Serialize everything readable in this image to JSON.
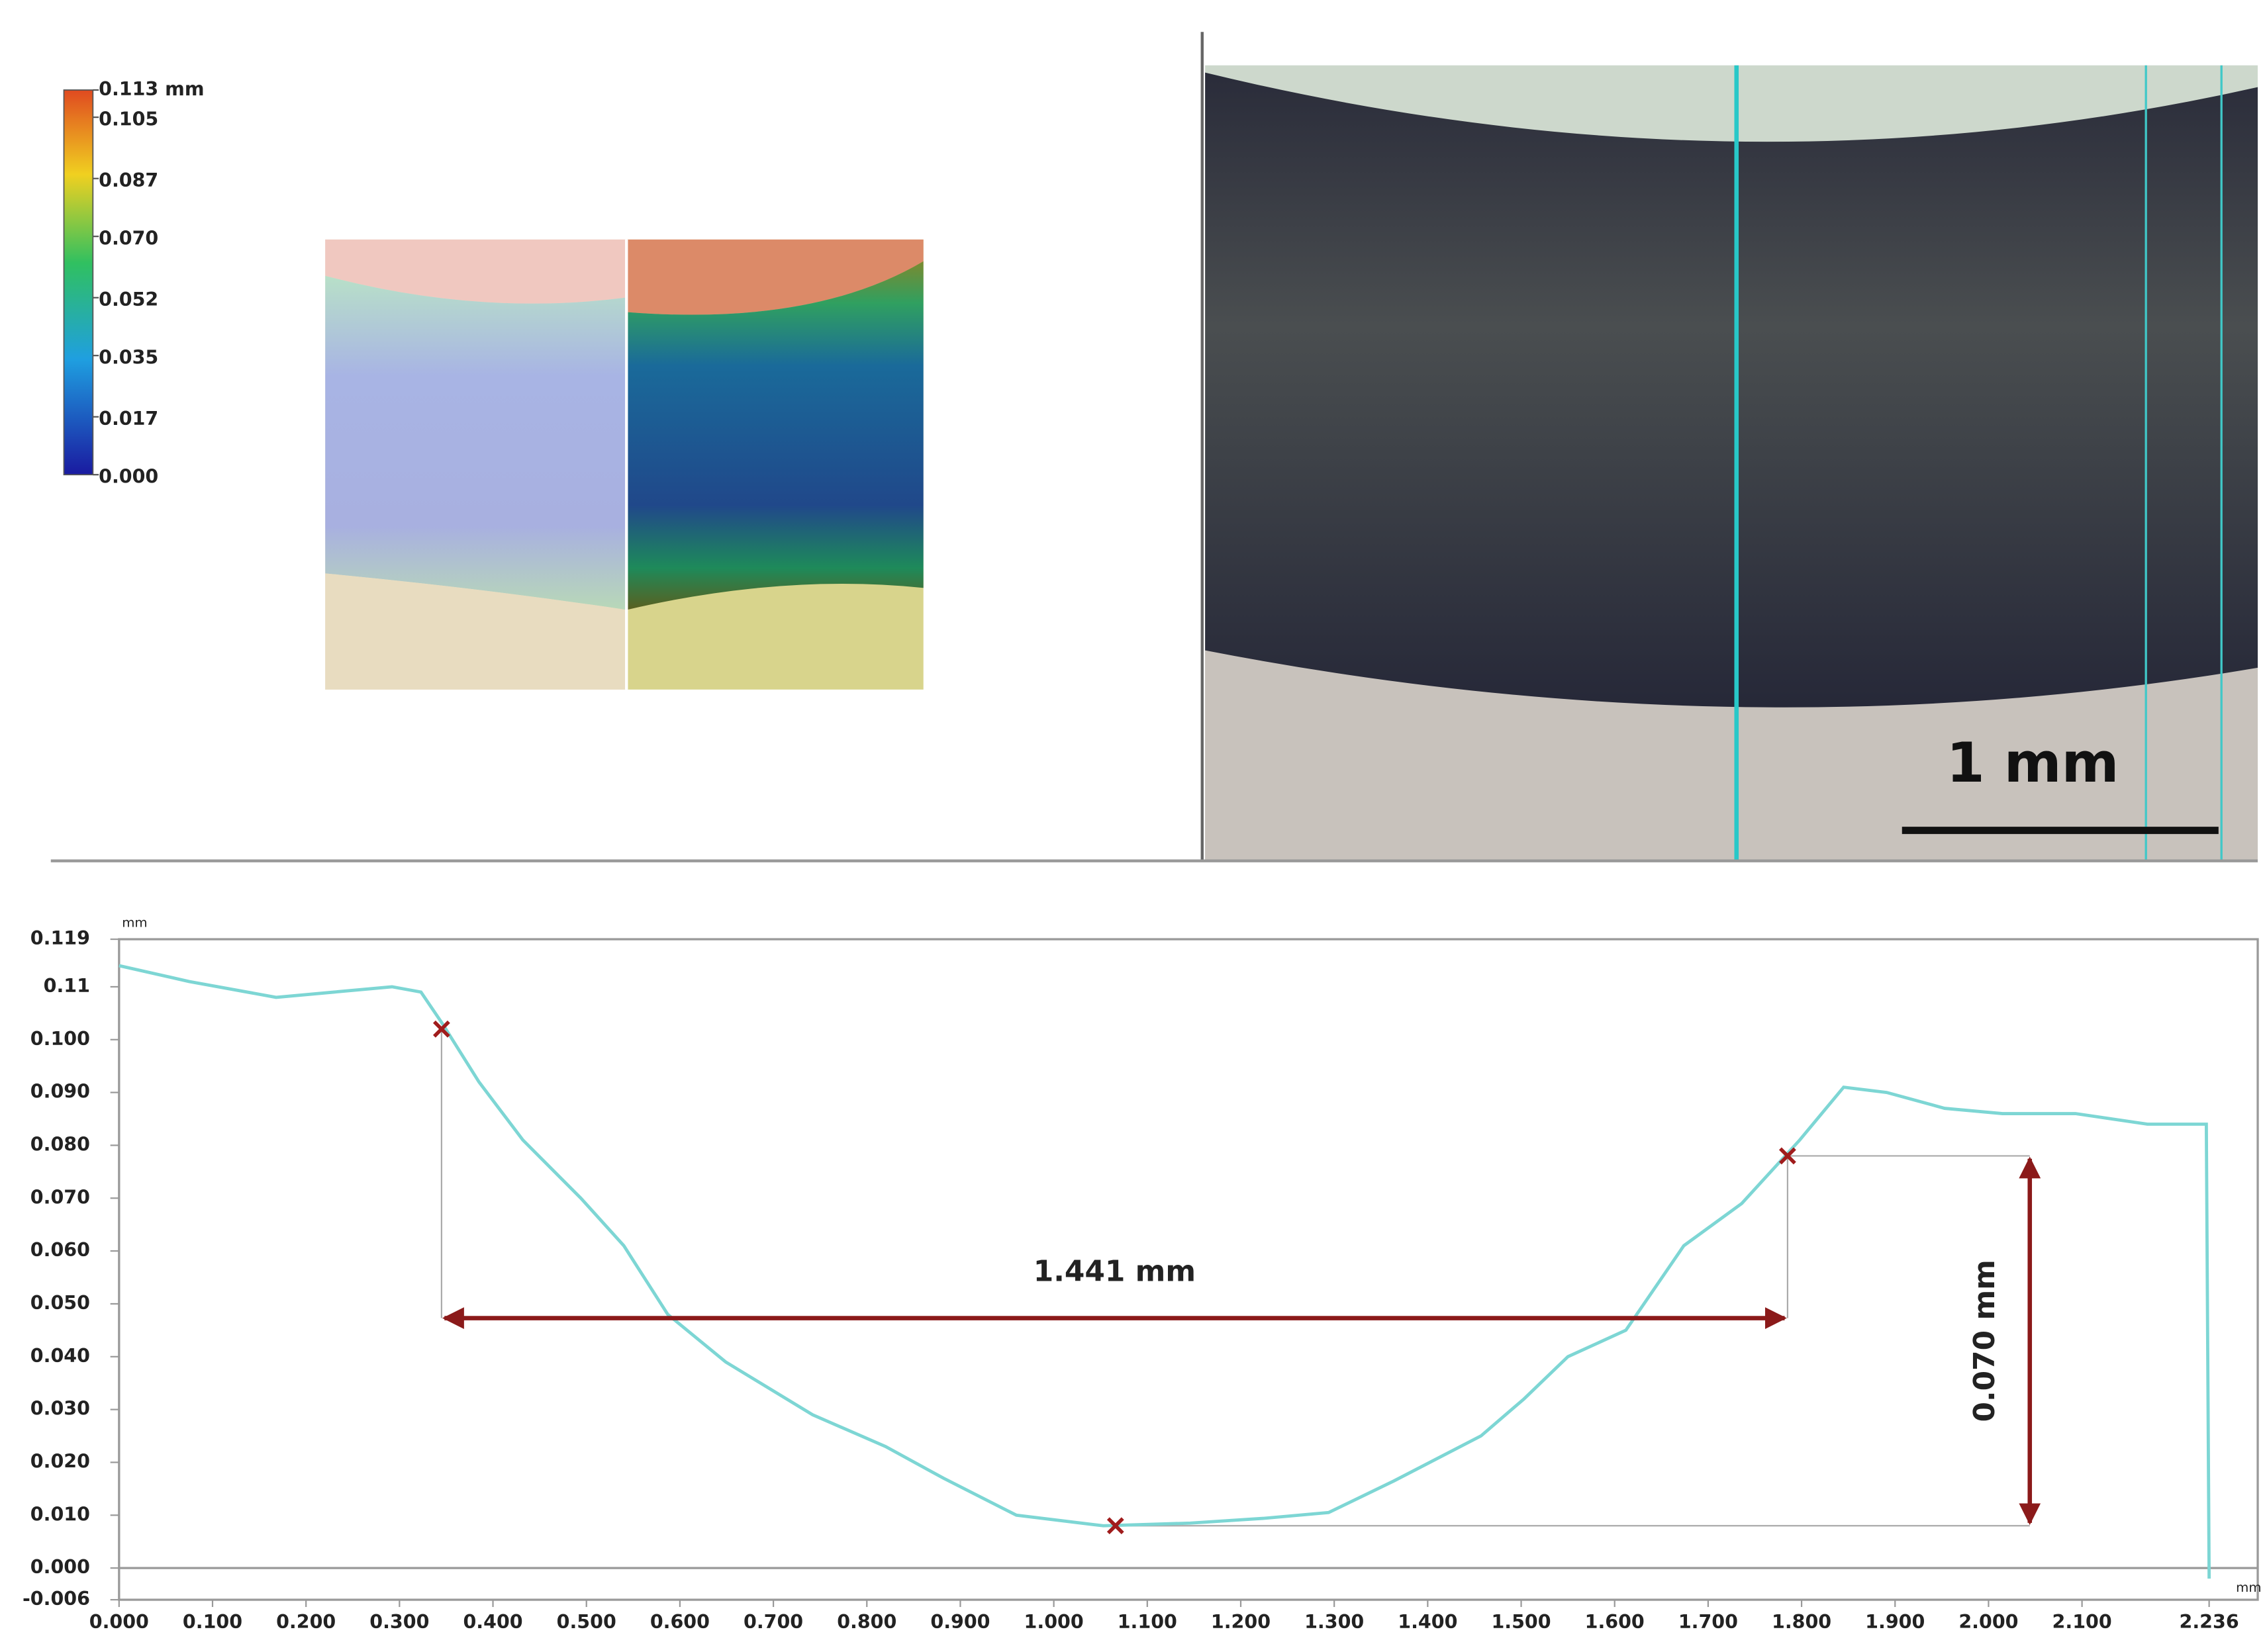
{
  "colorbar": {
    "lim": [
      0,
      0.113
    ],
    "ticks": [
      {
        "value": 0.113,
        "label": "0.113 mm"
      },
      0.105,
      0.087,
      {
        "value": 0.07,
        "label": "0.070"
      },
      0.052,
      0.035,
      0.017,
      {
        "value": 0,
        "label": "0.000"
      }
    ]
  },
  "micrograph": {
    "scale_bar_label": "1 mm"
  },
  "chart_data": {
    "type": "line",
    "x_unit": "mm",
    "y_unit": "mm",
    "color": "#7dd6d4",
    "x": [
      0,
      0.075,
      0.168,
      0.23,
      0.292,
      0.323,
      0.346,
      0.385,
      0.432,
      0.494,
      0.54,
      0.587,
      0.649,
      0.742,
      0.82,
      0.882,
      0.96,
      1.053,
      1.146,
      1.224,
      1.294,
      1.364,
      1.457,
      1.503,
      1.55,
      1.612,
      1.674,
      1.736,
      1.798,
      1.845,
      1.891,
      1.953,
      2.015,
      2.093,
      2.17,
      2.233,
      2.236
    ],
    "values": [
      0.114,
      0.111,
      0.108,
      0.109,
      0.11,
      0.109,
      0.103,
      0.092,
      0.081,
      0.07,
      0.061,
      0.048,
      0.039,
      0.029,
      0.023,
      0.017,
      0.01,
      0.008,
      0.0085,
      0.0094,
      0.0105,
      0.0165,
      0.025,
      0.032,
      0.04,
      0.045,
      0.061,
      0.069,
      0.081,
      0.091,
      0.09,
      0.087,
      0.086,
      0.086,
      0.084,
      0.084,
      -0.002
    ],
    "markers": {
      "color": "#a01c1c",
      "x": [
        0.345,
        1.785,
        1.066
      ],
      "values": [
        0.102,
        0.078,
        0.008
      ]
    },
    "annotations": [
      "1.441 mm",
      "0.070 mm"
    ],
    "xlim": [
      0,
      2.288
    ],
    "ylim": [
      -0.006,
      0.119
    ],
    "xticks": [
      {
        "value": 0,
        "label": "0.000"
      },
      {
        "value": 0.1,
        "label": "0.100"
      },
      {
        "value": 0.2,
        "label": "0.200"
      },
      {
        "value": 0.3,
        "label": "0.300"
      },
      {
        "value": 0.4,
        "label": "0.400"
      },
      {
        "value": 0.5,
        "label": "0.500"
      },
      {
        "value": 0.6,
        "label": "0.600"
      },
      {
        "value": 0.7,
        "label": "0.700"
      },
      {
        "value": 0.8,
        "label": "0.800"
      },
      {
        "value": 0.9,
        "label": "0.900"
      },
      {
        "value": 1.0,
        "label": "1.000"
      },
      {
        "value": 1.1,
        "label": "1.100"
      },
      {
        "value": 1.2,
        "label": "1.200"
      },
      {
        "value": 1.3,
        "label": "1.300"
      },
      {
        "value": 1.4,
        "label": "1.400"
      },
      {
        "value": 1.5,
        "label": "1.500"
      },
      {
        "value": 1.6,
        "label": "1.600"
      },
      {
        "value": 1.7,
        "label": "1.700"
      },
      {
        "value": 1.8,
        "label": "1.800"
      },
      {
        "value": 1.9,
        "label": "1.900"
      },
      {
        "value": 2.0,
        "label": "2.000"
      },
      {
        "value": 2.1,
        "label": "2.100"
      },
      2.236
    ],
    "yticks": [
      -0.006,
      {
        "value": 0,
        "label": "0.000"
      },
      {
        "value": 0.01,
        "label": "0.010"
      },
      {
        "value": 0.02,
        "label": "0.020"
      },
      {
        "value": 0.03,
        "label": "0.030"
      },
      {
        "value": 0.04,
        "label": "0.040"
      },
      {
        "value": 0.05,
        "label": "0.050"
      },
      {
        "value": 0.06,
        "label": "0.060"
      },
      {
        "value": 0.07,
        "label": "0.070"
      },
      {
        "value": 0.08,
        "label": "0.080"
      },
      {
        "value": 0.09,
        "label": "0.090"
      },
      {
        "value": 0.1,
        "label": "0.100"
      },
      0.11,
      0.119
    ],
    "grid": false
  }
}
